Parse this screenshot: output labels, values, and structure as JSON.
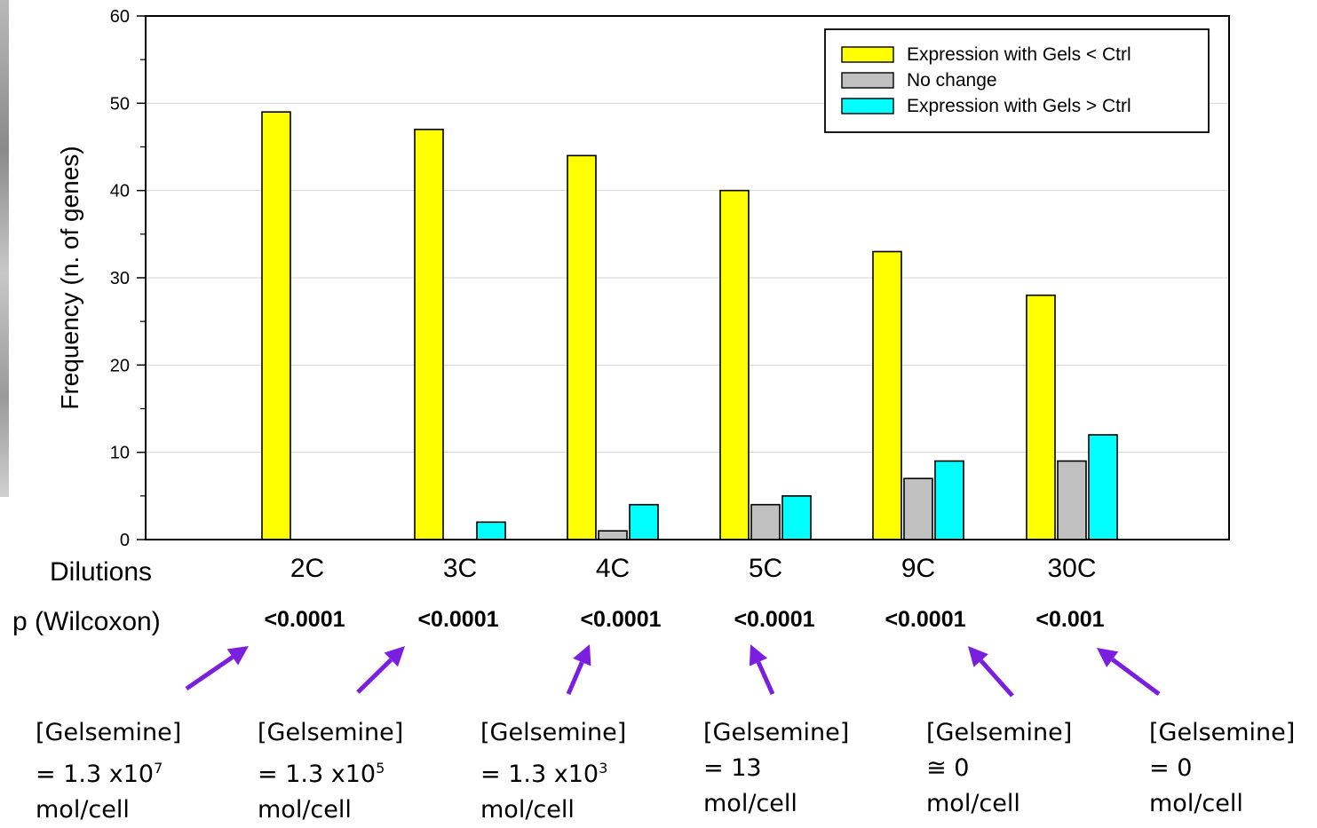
{
  "chart_data": {
    "type": "bar",
    "categories": [
      "2C",
      "3C",
      "4C",
      "5C",
      "9C",
      "30C"
    ],
    "series": [
      {
        "name": "Expression with Gels < Ctrl",
        "color": "#ffff00",
        "values": [
          49,
          47,
          44,
          40,
          33,
          28
        ]
      },
      {
        "name": "No change",
        "color": "#c0c0c0",
        "values": [
          0,
          0,
          1,
          4,
          7,
          9
        ]
      },
      {
        "name": "Expression with Gels > Ctrl",
        "color": "#00ffff",
        "values": [
          0,
          2,
          4,
          5,
          9,
          12
        ]
      }
    ],
    "ylabel": "Frequency (n. of genes)",
    "xlabel": "",
    "ylim": [
      0,
      60
    ],
    "yticks": [
      0,
      10,
      20,
      30,
      40,
      50,
      60
    ],
    "grid": true,
    "legend_position": "top-right"
  },
  "rows": {
    "dilutions_label": "Dilutions",
    "p_label": "p (Wilcoxon)",
    "p_values": [
      "<0.0001",
      "<0.0001",
      "<0.0001",
      "<0.0001",
      "<0.0001",
      "<0.001"
    ]
  },
  "annotations": {
    "arrow_color": "#7a1fe0",
    "items": [
      {
        "line1": "[Gelsemine]",
        "line2": "= 1.3 x10",
        "exp": "7",
        "line3": "mol/cell"
      },
      {
        "line1": "[Gelsemine]",
        "line2": "= 1.3 x10",
        "exp": "5",
        "line3": "mol/cell"
      },
      {
        "line1": "[Gelsemine]",
        "line2": "= 1.3 x10",
        "exp": "3",
        "line3": "mol/cell"
      },
      {
        "line1": "[Gelsemine]",
        "line2": "= 13",
        "exp": "",
        "line3": "mol/cell"
      },
      {
        "line1": "[Gelsemine]",
        "line2": "≅ 0",
        "exp": "",
        "line3": "mol/cell"
      },
      {
        "line1": "[Gelsemine]",
        "line2": "= 0",
        "exp": "",
        "line3": "mol/cell"
      }
    ]
  }
}
